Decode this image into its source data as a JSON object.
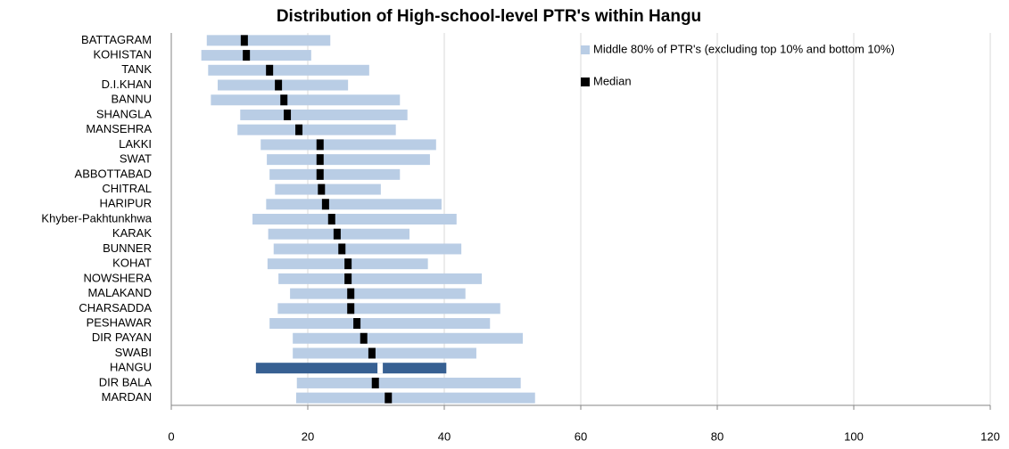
{
  "chart_data": {
    "type": "floating_bar",
    "title": "Distribution of High-school-level PTR's within Hangu",
    "categories": [
      "BATTAGRAM",
      "KOHISTAN",
      "TANK",
      "D.I.KHAN",
      "BANNU",
      "SHANGLA",
      "MANSEHRA",
      "LAKKI",
      "SWAT",
      "ABBOTTABAD",
      "CHITRAL",
      "HARIPUR",
      "Khyber-Pakhtunkhwa",
      "KARAK",
      "BUNNER",
      "KOHAT",
      "NOWSHERA",
      "MALAKAND",
      "CHARSADDA",
      "PESHAWAR",
      "DIR PAYAN",
      "SWABI",
      "HANGU",
      "DIR BALA",
      "MARDAN"
    ],
    "series": [
      {
        "name": "Middle 80% of PTR's (excluding top 10% and bottom 10%)",
        "color": "#b9cde5",
        "highlight_color": "#376092",
        "low": [
          5.2,
          4.4,
          5.4,
          6.8,
          5.8,
          10.1,
          9.7,
          13.1,
          14.0,
          14.4,
          15.2,
          13.9,
          11.9,
          14.2,
          15.0,
          14.1,
          15.7,
          17.4,
          15.6,
          14.4,
          17.8,
          17.8,
          12.4,
          18.4,
          18.3
        ],
        "high": [
          23.3,
          20.5,
          29.0,
          25.9,
          33.5,
          34.6,
          32.9,
          38.8,
          37.9,
          33.5,
          30.7,
          39.6,
          41.8,
          34.9,
          42.5,
          37.6,
          45.5,
          43.1,
          48.2,
          46.7,
          51.5,
          44.7,
          40.3,
          51.2,
          53.3
        ]
      },
      {
        "name": "Median",
        "color": "#000000",
        "highlight_color": "#ffffff",
        "values": [
          10.7,
          11.0,
          14.4,
          15.7,
          16.5,
          17.0,
          18.7,
          21.8,
          21.8,
          21.8,
          22.0,
          22.6,
          23.5,
          24.3,
          25.0,
          25.9,
          25.9,
          26.3,
          26.3,
          27.2,
          28.2,
          29.4,
          30.6,
          29.9,
          31.8
        ]
      }
    ],
    "highlight": "HANGU",
    "xlim": [
      0,
      120
    ],
    "xticks": [
      0,
      20,
      40,
      60,
      80,
      100,
      120
    ],
    "grid": true
  }
}
